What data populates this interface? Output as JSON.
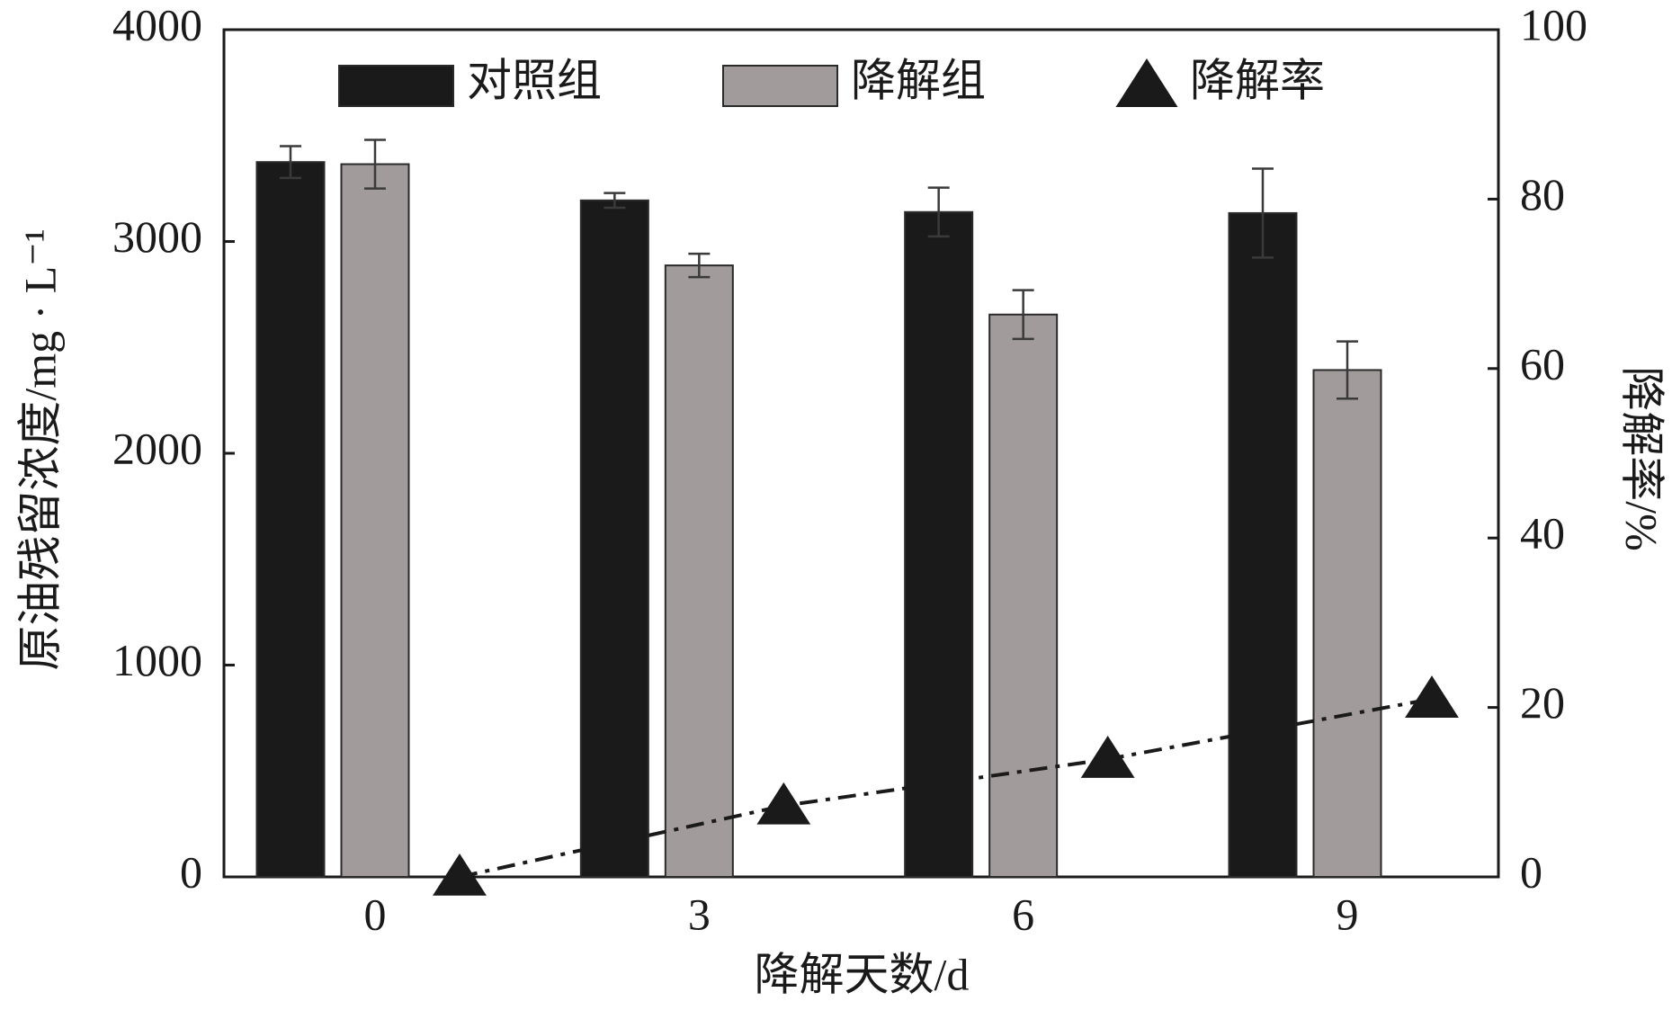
{
  "chart_data": {
    "type": "bar",
    "x_label": "降解天数/d",
    "y_label": "原油残留浓度/mg · L⁻¹",
    "y2_label": "降解率/%",
    "categories": [
      "0",
      "3",
      "6",
      "9"
    ],
    "series": [
      {
        "name": "对照组",
        "color": "#1a1a1a",
        "values": [
          3375,
          3194,
          3139,
          3134
        ],
        "errors": [
          75,
          35,
          115,
          210
        ]
      },
      {
        "name": "降解组",
        "color": "#a19b9b",
        "values": [
          3365,
          2887,
          2655,
          2393
        ],
        "errors": [
          115,
          55,
          115,
          135
        ]
      },
      {
        "name": "降解率",
        "color": "#1a1a1a",
        "values": [
          0,
          8.4,
          13.9,
          21
        ],
        "axis": "y2",
        "marker": "triangle"
      }
    ],
    "ylim": [
      0,
      4000
    ],
    "yticks": [
      0,
      1000,
      2000,
      3000,
      4000
    ],
    "y2lim": [
      0,
      100
    ],
    "y2ticks": [
      0,
      20,
      40,
      60,
      80,
      100
    ],
    "legend": "top"
  }
}
